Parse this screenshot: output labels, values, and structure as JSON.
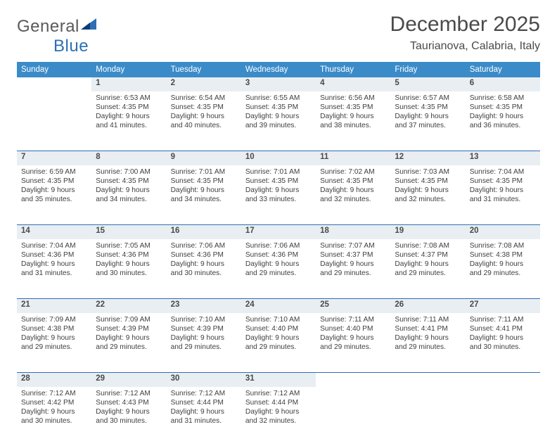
{
  "brand": {
    "name_a": "General",
    "name_b": "Blue"
  },
  "title": "December 2025",
  "location": "Taurianova, Calabria, Italy",
  "colors": {
    "header_bg": "#3b8bc9",
    "daynum_bg": "#e9eef2",
    "row_border": "#2d6fb5",
    "text": "#4a4a4a"
  },
  "day_headers": [
    "Sunday",
    "Monday",
    "Tuesday",
    "Wednesday",
    "Thursday",
    "Friday",
    "Saturday"
  ],
  "weeks": [
    {
      "nums": [
        "",
        "1",
        "2",
        "3",
        "4",
        "5",
        "6"
      ],
      "cells": [
        null,
        {
          "sunrise": "6:53 AM",
          "sunset": "4:35 PM",
          "daylight": "9 hours and 41 minutes."
        },
        {
          "sunrise": "6:54 AM",
          "sunset": "4:35 PM",
          "daylight": "9 hours and 40 minutes."
        },
        {
          "sunrise": "6:55 AM",
          "sunset": "4:35 PM",
          "daylight": "9 hours and 39 minutes."
        },
        {
          "sunrise": "6:56 AM",
          "sunset": "4:35 PM",
          "daylight": "9 hours and 38 minutes."
        },
        {
          "sunrise": "6:57 AM",
          "sunset": "4:35 PM",
          "daylight": "9 hours and 37 minutes."
        },
        {
          "sunrise": "6:58 AM",
          "sunset": "4:35 PM",
          "daylight": "9 hours and 36 minutes."
        }
      ]
    },
    {
      "nums": [
        "7",
        "8",
        "9",
        "10",
        "11",
        "12",
        "13"
      ],
      "cells": [
        {
          "sunrise": "6:59 AM",
          "sunset": "4:35 PM",
          "daylight": "9 hours and 35 minutes."
        },
        {
          "sunrise": "7:00 AM",
          "sunset": "4:35 PM",
          "daylight": "9 hours and 34 minutes."
        },
        {
          "sunrise": "7:01 AM",
          "sunset": "4:35 PM",
          "daylight": "9 hours and 34 minutes."
        },
        {
          "sunrise": "7:01 AM",
          "sunset": "4:35 PM",
          "daylight": "9 hours and 33 minutes."
        },
        {
          "sunrise": "7:02 AM",
          "sunset": "4:35 PM",
          "daylight": "9 hours and 32 minutes."
        },
        {
          "sunrise": "7:03 AM",
          "sunset": "4:35 PM",
          "daylight": "9 hours and 32 minutes."
        },
        {
          "sunrise": "7:04 AM",
          "sunset": "4:35 PM",
          "daylight": "9 hours and 31 minutes."
        }
      ]
    },
    {
      "nums": [
        "14",
        "15",
        "16",
        "17",
        "18",
        "19",
        "20"
      ],
      "cells": [
        {
          "sunrise": "7:04 AM",
          "sunset": "4:36 PM",
          "daylight": "9 hours and 31 minutes."
        },
        {
          "sunrise": "7:05 AM",
          "sunset": "4:36 PM",
          "daylight": "9 hours and 30 minutes."
        },
        {
          "sunrise": "7:06 AM",
          "sunset": "4:36 PM",
          "daylight": "9 hours and 30 minutes."
        },
        {
          "sunrise": "7:06 AM",
          "sunset": "4:36 PM",
          "daylight": "9 hours and 29 minutes."
        },
        {
          "sunrise": "7:07 AM",
          "sunset": "4:37 PM",
          "daylight": "9 hours and 29 minutes."
        },
        {
          "sunrise": "7:08 AM",
          "sunset": "4:37 PM",
          "daylight": "9 hours and 29 minutes."
        },
        {
          "sunrise": "7:08 AM",
          "sunset": "4:38 PM",
          "daylight": "9 hours and 29 minutes."
        }
      ]
    },
    {
      "nums": [
        "21",
        "22",
        "23",
        "24",
        "25",
        "26",
        "27"
      ],
      "cells": [
        {
          "sunrise": "7:09 AM",
          "sunset": "4:38 PM",
          "daylight": "9 hours and 29 minutes."
        },
        {
          "sunrise": "7:09 AM",
          "sunset": "4:39 PM",
          "daylight": "9 hours and 29 minutes."
        },
        {
          "sunrise": "7:10 AM",
          "sunset": "4:39 PM",
          "daylight": "9 hours and 29 minutes."
        },
        {
          "sunrise": "7:10 AM",
          "sunset": "4:40 PM",
          "daylight": "9 hours and 29 minutes."
        },
        {
          "sunrise": "7:11 AM",
          "sunset": "4:40 PM",
          "daylight": "9 hours and 29 minutes."
        },
        {
          "sunrise": "7:11 AM",
          "sunset": "4:41 PM",
          "daylight": "9 hours and 29 minutes."
        },
        {
          "sunrise": "7:11 AM",
          "sunset": "4:41 PM",
          "daylight": "9 hours and 30 minutes."
        }
      ]
    },
    {
      "nums": [
        "28",
        "29",
        "30",
        "31",
        "",
        "",
        ""
      ],
      "cells": [
        {
          "sunrise": "7:12 AM",
          "sunset": "4:42 PM",
          "daylight": "9 hours and 30 minutes."
        },
        {
          "sunrise": "7:12 AM",
          "sunset": "4:43 PM",
          "daylight": "9 hours and 30 minutes."
        },
        {
          "sunrise": "7:12 AM",
          "sunset": "4:44 PM",
          "daylight": "9 hours and 31 minutes."
        },
        {
          "sunrise": "7:12 AM",
          "sunset": "4:44 PM",
          "daylight": "9 hours and 32 minutes."
        },
        null,
        null,
        null
      ]
    }
  ],
  "labels": {
    "sunrise": "Sunrise:",
    "sunset": "Sunset:",
    "daylight": "Daylight:"
  }
}
